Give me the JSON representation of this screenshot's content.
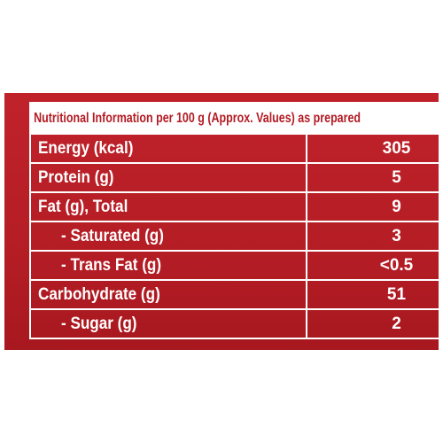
{
  "table": {
    "header": "Nutritional Information per 100 g (Approx. Values) as prepared",
    "rows": [
      [
        "Energy (kcal)",
        "305"
      ],
      [
        "Protein (g)",
        "5"
      ],
      [
        "Fat (g), Total",
        "9"
      ],
      [
        "- Saturated (g)",
        "3"
      ],
      [
        "- Trans Fat (g)",
        "<0.5"
      ],
      [
        "Carbohydrate (g)",
        "51"
      ],
      [
        "- Sugar (g)",
        "2"
      ]
    ]
  }
}
